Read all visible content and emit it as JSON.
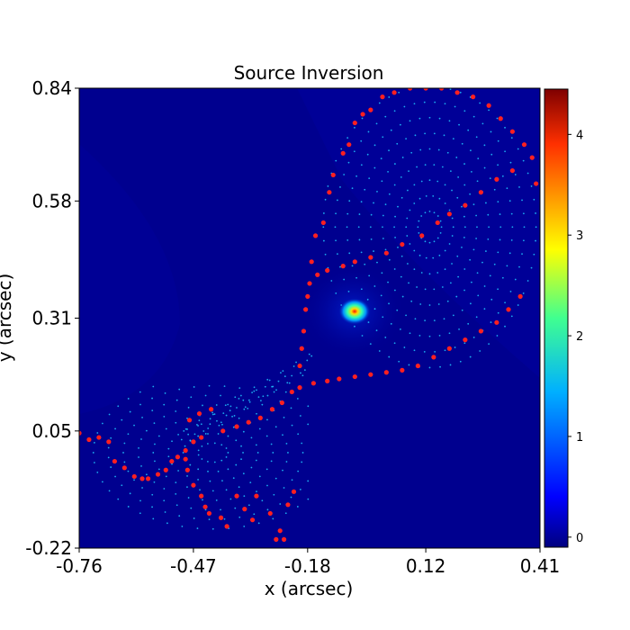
{
  "chart_data": {
    "type": "scatter",
    "title": "Source Inversion",
    "xlabel": "x (arcsec)",
    "ylabel": "y (arcsec)",
    "xlim": [
      -0.76,
      0.41
    ],
    "ylim": [
      -0.22,
      0.84
    ],
    "x_ticks": [
      "-0.76",
      "-0.47",
      "-0.18",
      "0.12",
      "0.41"
    ],
    "y_ticks": [
      "-0.22",
      "0.05",
      "0.31",
      "0.58",
      "0.84"
    ],
    "x_tick_values": [
      -0.76,
      -0.47,
      -0.18,
      0.12,
      0.41
    ],
    "y_tick_values": [
      -0.22,
      0.05,
      0.31,
      0.58,
      0.84
    ],
    "colorbar": {
      "min": -0.1,
      "max": 4.45,
      "ticks": [
        "0",
        "1",
        "2",
        "3",
        "4"
      ],
      "tick_values": [
        0,
        1,
        2,
        3,
        4
      ],
      "colormap": "jet"
    },
    "background_color": "#00008f",
    "source_peak": {
      "x": -0.03,
      "y": 0.32,
      "value": 4.45
    },
    "grid": false,
    "legend": "none",
    "series": [
      {
        "color": "#ff2020",
        "points": [
          [
            -0.76,
            0.045
          ],
          [
            -0.735,
            0.03
          ],
          [
            -0.71,
            0.035
          ],
          [
            -0.685,
            0.025
          ],
          [
            -0.67,
            -0.02
          ],
          [
            -0.645,
            -0.035
          ],
          [
            -0.62,
            -0.055
          ],
          [
            -0.6,
            -0.06
          ],
          [
            -0.585,
            -0.06
          ],
          [
            -0.56,
            -0.05
          ],
          [
            -0.54,
            -0.04
          ],
          [
            -0.525,
            -0.02
          ],
          [
            -0.51,
            -0.01
          ],
          [
            -0.49,
            0.005
          ],
          [
            -0.47,
            0.025
          ],
          [
            -0.45,
            0.035
          ],
          [
            -0.49,
            -0.015
          ],
          [
            -0.485,
            -0.04
          ],
          [
            -0.47,
            -0.075
          ],
          [
            -0.45,
            -0.1
          ],
          [
            -0.44,
            -0.125
          ],
          [
            -0.43,
            -0.14
          ],
          [
            -0.4,
            -0.15
          ],
          [
            -0.385,
            -0.17
          ],
          [
            -0.36,
            -0.1
          ],
          [
            -0.34,
            -0.13
          ],
          [
            -0.32,
            -0.155
          ],
          [
            -0.48,
            0.075
          ],
          [
            -0.455,
            0.09
          ],
          [
            -0.425,
            0.1
          ],
          [
            -0.395,
            0.05
          ],
          [
            -0.36,
            0.06
          ],
          [
            -0.33,
            0.07
          ],
          [
            -0.3,
            0.08
          ],
          [
            -0.27,
            0.1
          ],
          [
            -0.245,
            0.115
          ],
          [
            -0.22,
            0.14
          ],
          [
            -0.2,
            0.2
          ],
          [
            -0.195,
            0.24
          ],
          [
            -0.31,
            -0.1
          ],
          [
            -0.275,
            -0.14
          ],
          [
            -0.25,
            -0.18
          ],
          [
            -0.26,
            -0.2
          ],
          [
            -0.24,
            -0.2
          ],
          [
            -0.23,
            -0.12
          ],
          [
            -0.215,
            -0.09
          ],
          [
            -0.19,
            0.28
          ],
          [
            -0.185,
            0.33
          ],
          [
            -0.18,
            0.36
          ],
          [
            -0.175,
            0.39
          ],
          [
            -0.17,
            0.44
          ],
          [
            -0.16,
            0.5
          ],
          [
            -0.14,
            0.53
          ],
          [
            -0.125,
            0.6
          ],
          [
            -0.115,
            0.64
          ],
          [
            -0.09,
            0.69
          ],
          [
            -0.075,
            0.71
          ],
          [
            -0.06,
            0.76
          ],
          [
            -0.04,
            0.78
          ],
          [
            -0.02,
            0.79
          ],
          [
            -0.155,
            0.41
          ],
          [
            -0.13,
            0.42
          ],
          [
            -0.09,
            0.43
          ],
          [
            -0.06,
            0.44
          ],
          [
            -0.02,
            0.45
          ],
          [
            0.02,
            0.46
          ],
          [
            0.06,
            0.48
          ],
          [
            0.11,
            0.5
          ],
          [
            0.15,
            0.53
          ],
          [
            0.18,
            0.55
          ],
          [
            0.22,
            0.57
          ],
          [
            0.26,
            0.6
          ],
          [
            0.3,
            0.63
          ],
          [
            0.34,
            0.65
          ],
          [
            -0.2,
            0.15
          ],
          [
            -0.165,
            0.16
          ],
          [
            -0.13,
            0.165
          ],
          [
            -0.1,
            0.17
          ],
          [
            -0.06,
            0.175
          ],
          [
            -0.02,
            0.18
          ],
          [
            0.02,
            0.185
          ],
          [
            0.06,
            0.19
          ],
          [
            0.1,
            0.2
          ],
          [
            0.14,
            0.22
          ],
          [
            0.18,
            0.24
          ],
          [
            0.22,
            0.26
          ],
          [
            0.26,
            0.28
          ],
          [
            0.3,
            0.3
          ],
          [
            0.33,
            0.33
          ],
          [
            0.36,
            0.36
          ],
          [
            0.01,
            0.82
          ],
          [
            0.04,
            0.83
          ],
          [
            0.08,
            0.84
          ],
          [
            0.12,
            0.84
          ],
          [
            0.16,
            0.84
          ],
          [
            0.2,
            0.83
          ],
          [
            0.24,
            0.82
          ],
          [
            0.28,
            0.8
          ],
          [
            0.31,
            0.77
          ],
          [
            0.34,
            0.74
          ],
          [
            0.37,
            0.71
          ],
          [
            0.39,
            0.68
          ],
          [
            0.4,
            0.62
          ]
        ]
      }
    ]
  }
}
